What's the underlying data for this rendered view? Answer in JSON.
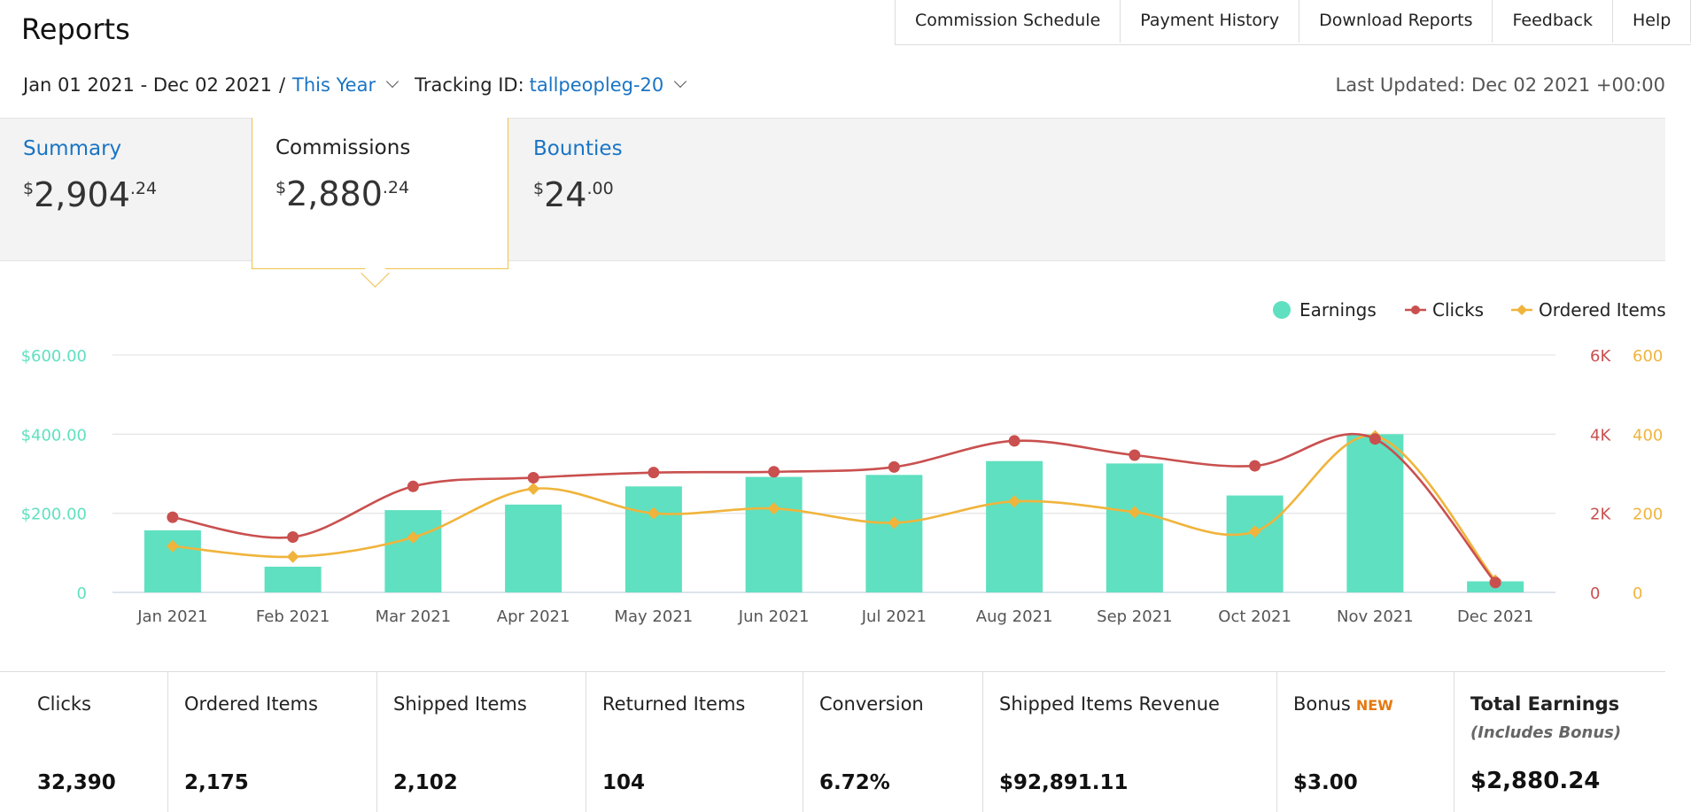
{
  "page_title": "Reports",
  "nav": [
    "Commission Schedule",
    "Payment History",
    "Download Reports",
    "Feedback",
    "Help"
  ],
  "filters": {
    "date_range": "Jan 01 2021 - Dec 02 2021",
    "separator": "/",
    "period": "This Year",
    "tracking_label": "Tracking ID:",
    "tracking_id": "tallpeopleg-20",
    "last_updated": "Last Updated: Dec 02 2021 +00:00"
  },
  "tabs": [
    {
      "label": "Summary",
      "currency": "$",
      "whole": "2,904",
      "cents": ".24",
      "active": false
    },
    {
      "label": "Commissions",
      "currency": "$",
      "whole": "2,880",
      "cents": ".24",
      "active": true
    },
    {
      "label": "Bounties",
      "currency": "$",
      "whole": "24",
      "cents": ".00",
      "active": false
    }
  ],
  "legend": {
    "earnings": "Earnings",
    "clicks": "Clicks",
    "ordered": "Ordered Items"
  },
  "colors": {
    "earnings": "#5fe0c0",
    "clicks": "#c9504f",
    "ordered": "#f0b43c",
    "link": "#1a74c4",
    "new_badge": "#e47911"
  },
  "chart_data": {
    "type": "bar",
    "categories": [
      "Jan 2021",
      "Feb 2021",
      "Mar 2021",
      "Apr 2021",
      "May 2021",
      "Jun 2021",
      "Jul 2021",
      "Aug 2021",
      "Sep 2021",
      "Oct 2021",
      "Nov 2021",
      "Dec 2021"
    ],
    "series": [
      {
        "name": "Earnings",
        "type": "bar",
        "axis": "left",
        "values": [
          157,
          65,
          208,
          222,
          268,
          292,
          297,
          332,
          326,
          245,
          400,
          28
        ]
      },
      {
        "name": "Clicks",
        "type": "line",
        "axis": "right1",
        "values": [
          1900,
          1400,
          2680,
          2900,
          3030,
          3050,
          3170,
          3830,
          3470,
          3200,
          3880,
          250
        ]
      },
      {
        "name": "Ordered Items",
        "type": "line",
        "axis": "right2",
        "values": [
          117,
          90,
          139,
          262,
          200,
          212,
          176,
          230,
          203,
          154,
          395,
          30
        ]
      }
    ],
    "left_axis": {
      "ticks": [
        "0",
        "$200.00",
        "$400.00",
        "$600.00"
      ],
      "range": [
        0,
        600
      ]
    },
    "right_axis_1": {
      "ticks": [
        "0",
        "2K",
        "4K",
        "6K"
      ],
      "range": [
        0,
        6000
      ]
    },
    "right_axis_2": {
      "ticks": [
        "0",
        "200",
        "400",
        "600"
      ],
      "range": [
        0,
        600
      ]
    },
    "legend_position": "top-right",
    "grid": true
  },
  "stats": [
    {
      "label": "Clicks",
      "value": "32,390"
    },
    {
      "label": "Ordered Items",
      "value": "2,175"
    },
    {
      "label": "Shipped Items",
      "value": "2,102"
    },
    {
      "label": "Returned Items",
      "value": "104"
    },
    {
      "label": "Conversion",
      "value": "6.72%"
    },
    {
      "label": "Shipped Items Revenue",
      "value": "$92,891.11"
    },
    {
      "label": "Bonus",
      "badge": "NEW",
      "value": "$3.00"
    },
    {
      "label": "Total Earnings",
      "sublabel": "(Includes Bonus)",
      "value": "$2,880.24"
    }
  ]
}
